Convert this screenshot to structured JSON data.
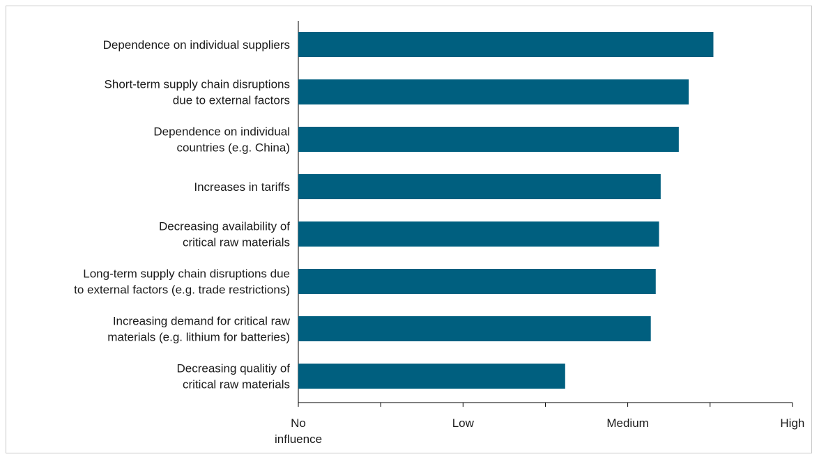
{
  "chart_data": {
    "type": "bar",
    "orientation": "horizontal",
    "title": "",
    "xlabel": "",
    "ylabel": "",
    "categories": [
      [
        "Dependence on individual suppliers"
      ],
      [
        "Short-term supply chain disruptions",
        "due to external factors"
      ],
      [
        "Dependence on individual",
        "countries (e.g. China)"
      ],
      [
        "Increases in tariffs"
      ],
      [
        "Decreasing availability of",
        "critical raw materials"
      ],
      [
        "Long-term supply chain disruptions due",
        "to external factors (e.g. trade restrictions)"
      ],
      [
        "Increasing demand for critical raw",
        "materials (e.g. lithium for batteries)"
      ],
      [
        "Decreasing qualitiy of",
        "critical raw materials"
      ]
    ],
    "values": [
      2.52,
      2.37,
      2.31,
      2.2,
      2.19,
      2.17,
      2.14,
      1.62
    ],
    "xlim": [
      0,
      3
    ],
    "x_ticks": [
      {
        "value": 0,
        "label": [
          "No",
          "influence"
        ]
      },
      {
        "value": 1,
        "label": [
          "Low"
        ]
      },
      {
        "value": 2,
        "label": [
          "Medium"
        ]
      },
      {
        "value": 3,
        "label": [
          "High"
        ]
      }
    ],
    "minor_ticks": [
      0.5,
      1.5,
      2.5
    ],
    "grid": false,
    "legend": "none",
    "bar_color": "#005f7f"
  }
}
